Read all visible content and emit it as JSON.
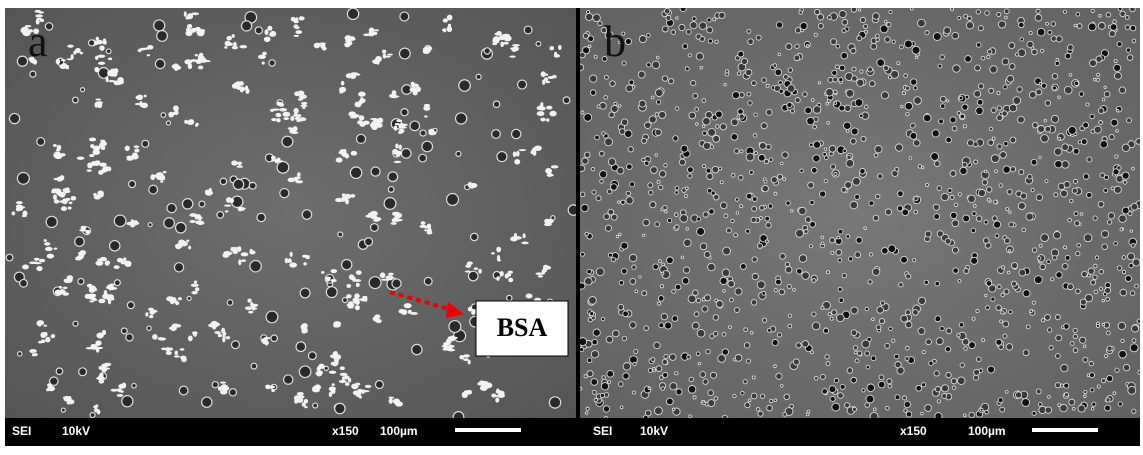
{
  "panels": [
    {
      "label": "a",
      "annotation": "BSA",
      "info": {
        "mode": "SEI",
        "voltage": "10kV",
        "magnification": "x150",
        "scale": "100µm"
      }
    },
    {
      "label": "b",
      "info": {
        "mode": "SEI",
        "voltage": "10kV",
        "magnification": "x150",
        "scale": "100µm"
      }
    }
  ]
}
